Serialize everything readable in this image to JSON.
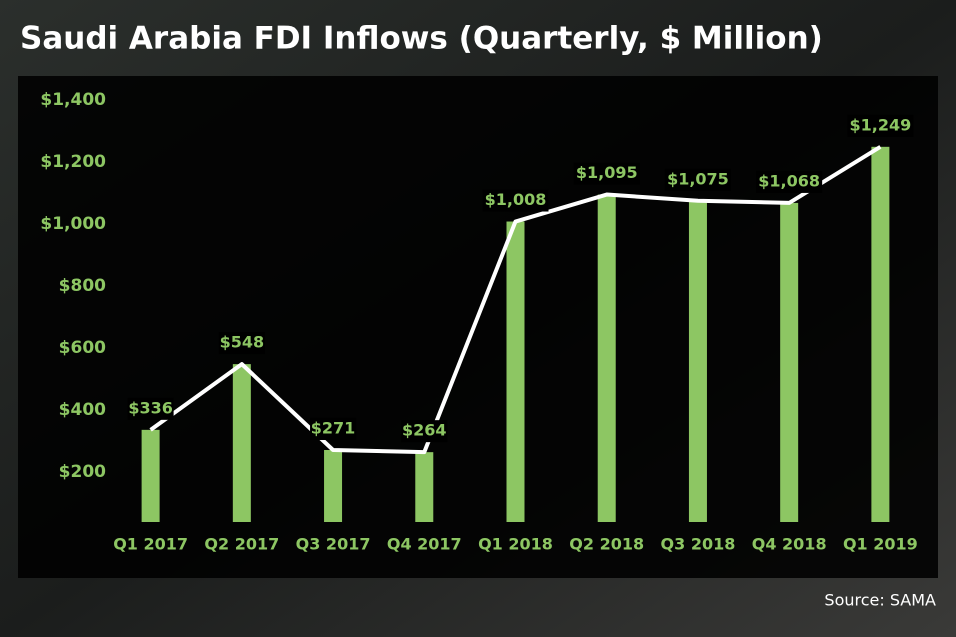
{
  "chart_data": {
    "type": "bar",
    "title": "Saudi Arabia FDI Inflows (Quarterly, $ Million)",
    "categories": [
      "Q1 2017",
      "Q2 2017",
      "Q3 2017",
      "Q4 2017",
      "Q1 2018",
      "Q2 2018",
      "Q3 2018",
      "Q4 2018",
      "Q1 2019"
    ],
    "values": [
      336,
      548,
      271,
      264,
      1008,
      1095,
      1075,
      1068,
      1249
    ],
    "value_labels": [
      "$336",
      "$548",
      "$271",
      "$264",
      "$1,008",
      "$1,095",
      "$1,075",
      "$1,068",
      "$1,249"
    ],
    "color": "#8dc663",
    "line_color": "#ffffff",
    "ylim": [
      0,
      1400
    ],
    "yticks": [
      {
        "value": 200,
        "label": "$200"
      },
      {
        "value": 400,
        "label": "$400"
      },
      {
        "value": 600,
        "label": "$600"
      },
      {
        "value": 800,
        "label": "$800"
      },
      {
        "value": 1000,
        "label": "$1,000"
      },
      {
        "value": 1200,
        "label": "$1,200"
      },
      {
        "value": 1400,
        "label": "$1,400"
      }
    ],
    "grid": false,
    "source": "Source: SAMA"
  }
}
